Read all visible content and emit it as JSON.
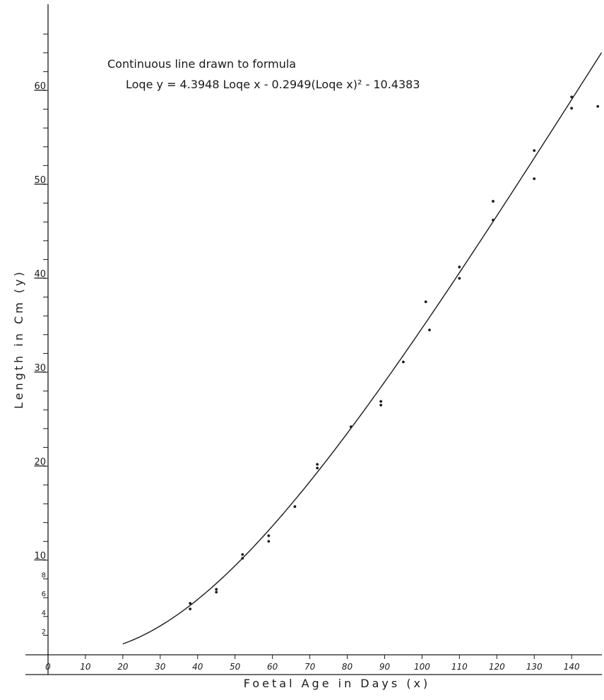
{
  "chart_data": {
    "type": "scatter",
    "title": "",
    "annotation_line1": "Continuous line drawn to formula",
    "annotation_line2": "Loqe y = 4.3948 Loqe x - 0.2949(Loqe x)² - 10.4383",
    "xlabel": "Foetal Age in Days (x)",
    "ylabel": "Length in Cm (y)",
    "xlim": [
      0,
      148
    ],
    "ylim": [
      0,
      67
    ],
    "grid": false,
    "x_ticks": [
      0,
      10,
      20,
      30,
      40,
      50,
      60,
      70,
      80,
      90,
      100,
      110,
      120,
      130,
      140
    ],
    "y_ticks": [
      2,
      4,
      6,
      8,
      10,
      20,
      30,
      40,
      50,
      60
    ],
    "points": [
      {
        "x": 38,
        "y": 5.4
      },
      {
        "x": 38,
        "y": 4.8
      },
      {
        "x": 45,
        "y": 6.9
      },
      {
        "x": 45,
        "y": 6.6
      },
      {
        "x": 52,
        "y": 10.6
      },
      {
        "x": 52,
        "y": 10.2
      },
      {
        "x": 59,
        "y": 12.6
      },
      {
        "x": 59,
        "y": 12.0
      },
      {
        "x": 66,
        "y": 15.7
      },
      {
        "x": 72,
        "y": 20.2
      },
      {
        "x": 72,
        "y": 19.8
      },
      {
        "x": 81,
        "y": 24.2
      },
      {
        "x": 89,
        "y": 26.9
      },
      {
        "x": 89,
        "y": 26.5
      },
      {
        "x": 95,
        "y": 31.1
      },
      {
        "x": 101,
        "y": 37.5
      },
      {
        "x": 102,
        "y": 34.5
      },
      {
        "x": 110,
        "y": 41.2
      },
      {
        "x": 110,
        "y": 40.0
      },
      {
        "x": 119,
        "y": 48.2
      },
      {
        "x": 119,
        "y": 46.2
      },
      {
        "x": 130,
        "y": 53.6
      },
      {
        "x": 130,
        "y": 50.6
      },
      {
        "x": 140,
        "y": 59.3
      },
      {
        "x": 140,
        "y": 58.1
      },
      {
        "x": 147,
        "y": 58.3
      }
    ],
    "curve": {
      "a": 4.3948,
      "b": -0.2949,
      "c": -10.4383,
      "x_range": [
        20,
        148
      ]
    },
    "colors": {
      "ink": "#1a1a1a",
      "background": "#ffffff"
    }
  }
}
